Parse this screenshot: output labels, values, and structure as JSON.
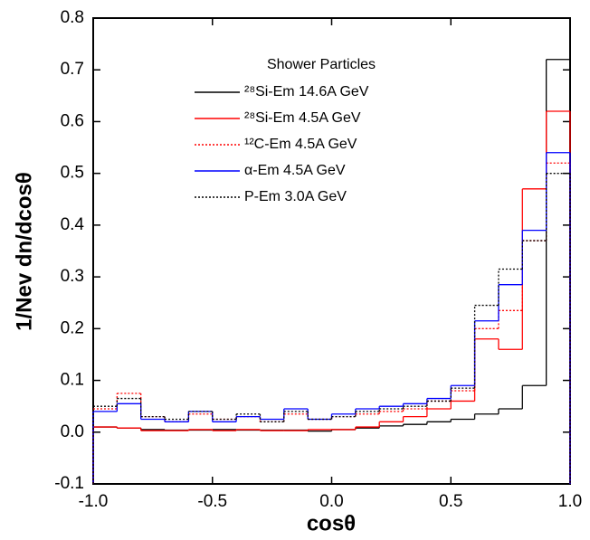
{
  "chart_data": {
    "type": "histogram",
    "x_label": "cosθ",
    "y_label": "1/Nev dn/dcosθ",
    "legend_title": "Shower Particles",
    "bins": [
      -1.0,
      -0.9,
      -0.8,
      -0.7,
      -0.6,
      -0.5,
      -0.4,
      -0.3,
      -0.2,
      -0.1,
      0.0,
      0.1,
      0.2,
      0.3,
      0.4,
      0.5,
      0.6,
      0.7,
      0.8,
      0.9,
      1.0
    ],
    "series": [
      {
        "name": "²⁸Si-Em 14.6A GeV",
        "color": "#000000",
        "linestyle": "solid",
        "values": [
          0.01,
          0.008,
          0.005,
          0.004,
          0.004,
          0.005,
          0.004,
          0.004,
          0.004,
          0.002,
          0.005,
          0.008,
          0.012,
          0.015,
          0.02,
          0.025,
          0.035,
          0.045,
          0.09,
          0.72
        ]
      },
      {
        "name": "²⁸Si-Em 4.5A GeV",
        "color": "#ff0000",
        "linestyle": "solid",
        "values": [
          0.01,
          0.008,
          0.003,
          0.003,
          0.005,
          0.003,
          0.005,
          0.003,
          0.003,
          0.005,
          0.005,
          0.01,
          0.02,
          0.03,
          0.045,
          0.06,
          0.18,
          0.16,
          0.47,
          0.62
        ]
      },
      {
        "name": "¹²C-Em 4.5A GeV",
        "color": "#ff0000",
        "linestyle": "dotted",
        "values": [
          0.045,
          0.075,
          0.03,
          0.02,
          0.035,
          0.025,
          0.03,
          0.02,
          0.035,
          0.025,
          0.03,
          0.035,
          0.04,
          0.045,
          0.06,
          0.08,
          0.2,
          0.235,
          0.37,
          0.52
        ]
      },
      {
        "name": "α-Em 4.5A GeV",
        "color": "#0000ff",
        "linestyle": "solid",
        "values": [
          0.04,
          0.055,
          0.025,
          0.02,
          0.04,
          0.02,
          0.03,
          0.025,
          0.045,
          0.025,
          0.035,
          0.045,
          0.05,
          0.055,
          0.065,
          0.09,
          0.215,
          0.285,
          0.39,
          0.54
        ]
      },
      {
        "name": "P-Em 3.0A GeV",
        "color": "#000000",
        "linestyle": "dotted",
        "values": [
          0.05,
          0.065,
          0.03,
          0.025,
          0.04,
          0.025,
          0.035,
          0.02,
          0.04,
          0.025,
          0.03,
          0.04,
          0.045,
          0.05,
          0.06,
          0.085,
          0.245,
          0.315,
          0.37,
          0.5
        ]
      }
    ],
    "xlim": [
      -1.0,
      1.0
    ],
    "xticks": [
      {
        "value": -1.0,
        "label": "-1.0"
      },
      {
        "value": -0.5,
        "label": "-0.5"
      },
      {
        "value": 0,
        "label": "0.0"
      },
      {
        "value": 0.5,
        "label": "0.5"
      },
      {
        "value": 1.0,
        "label": "1.0"
      }
    ],
    "ylim": [
      -0.1,
      0.8
    ],
    "yticks": [
      -0.1,
      {
        "value": 0,
        "label": "0.0"
      },
      0.1,
      0.2,
      0.3,
      0.4,
      0.5,
      0.6,
      0.7,
      0.8
    ]
  }
}
